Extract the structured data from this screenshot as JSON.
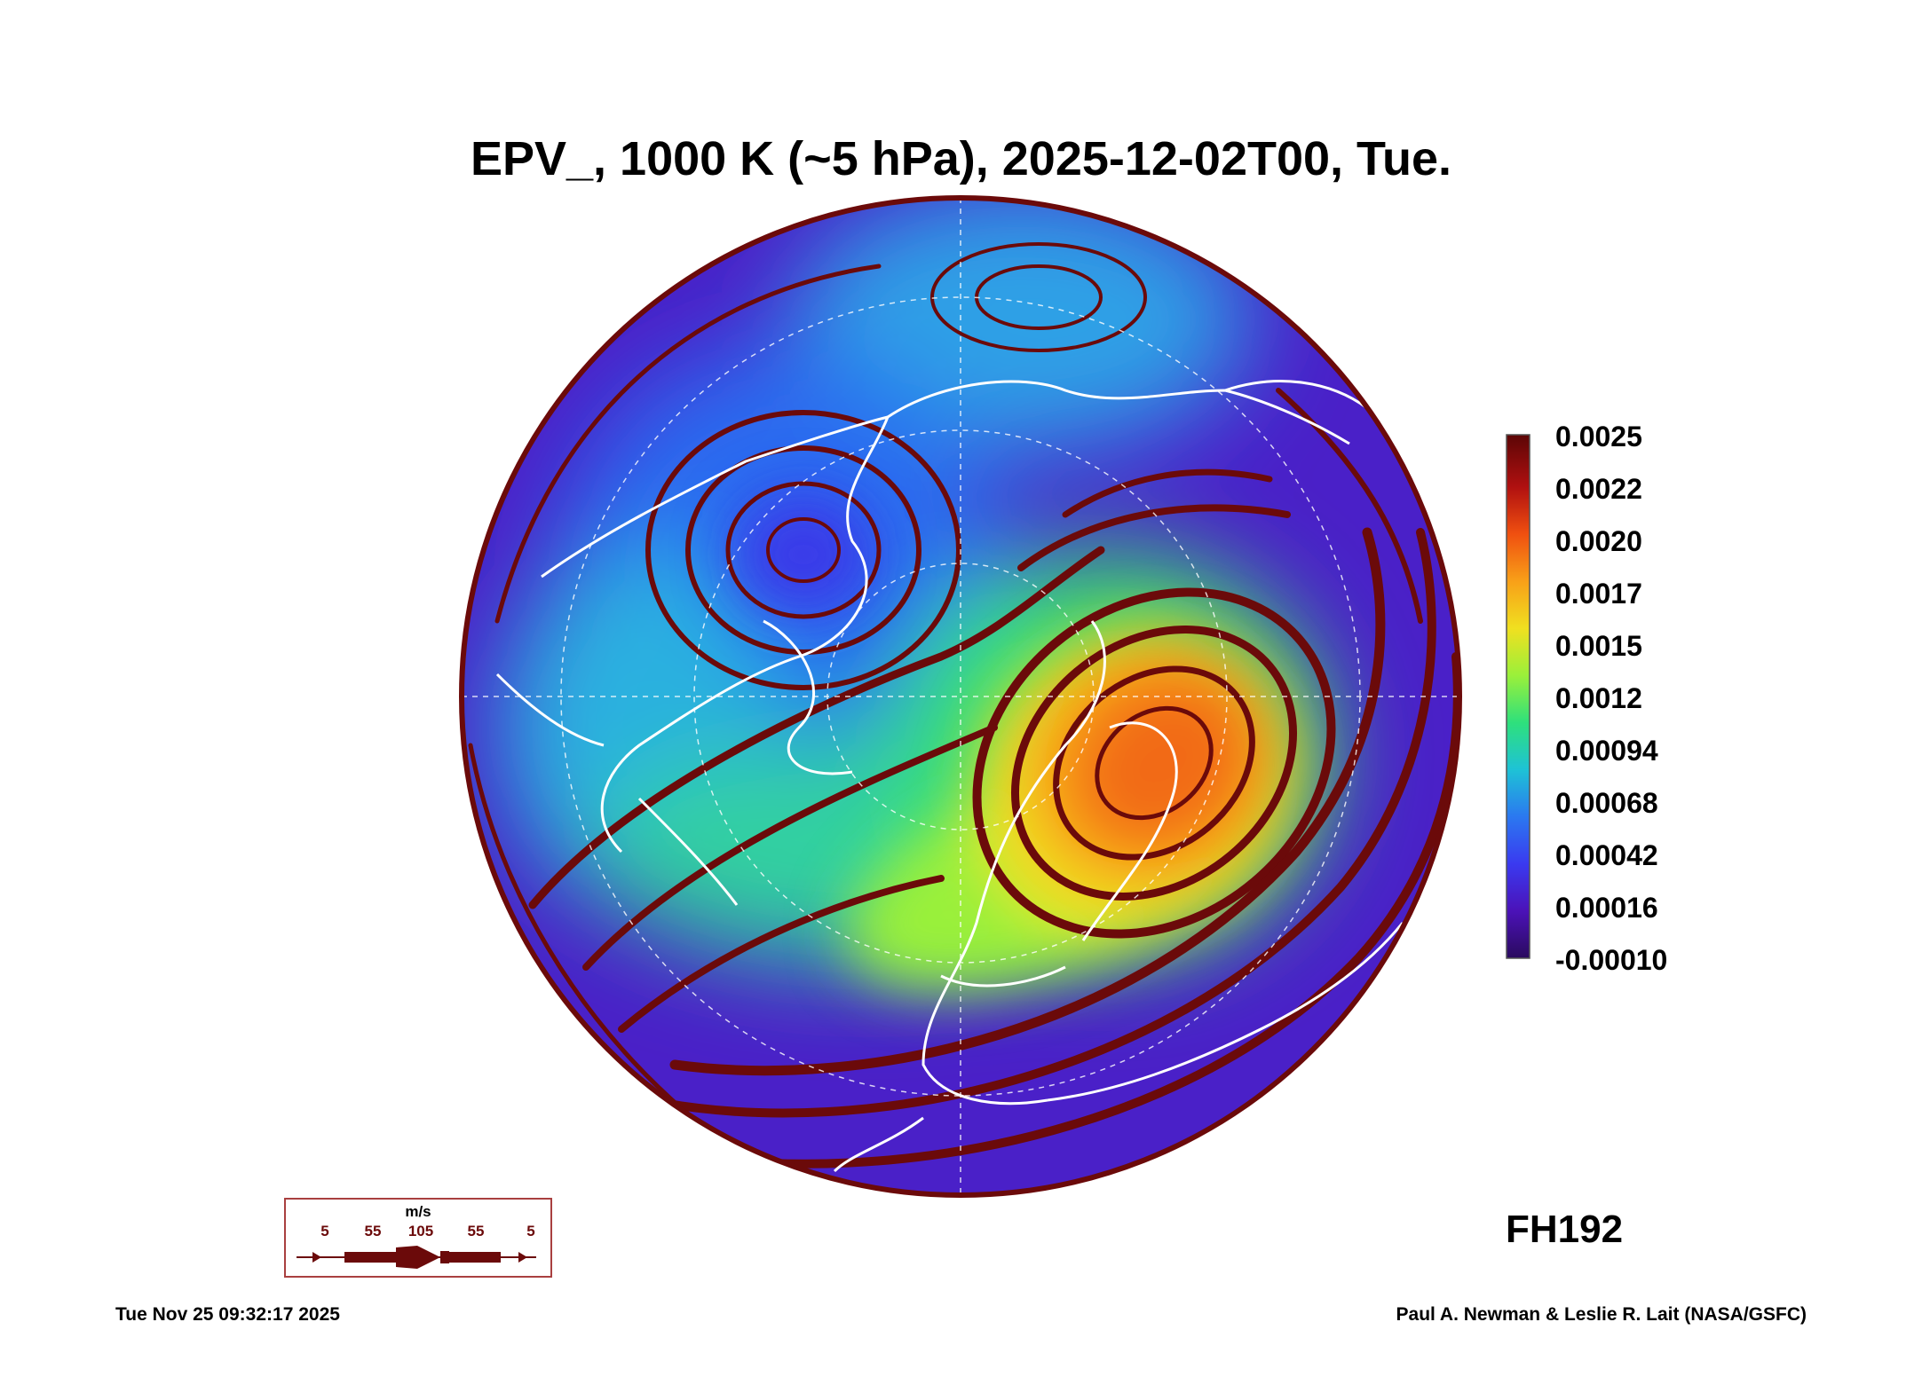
{
  "title": "EPV_, 1000 K (~5 hPa), 2025-12-02T00, Tue.",
  "colorbar": {
    "labels": [
      "0.0025",
      "0.0022",
      "0.0020",
      "0.0017",
      "0.0015",
      "0.0012",
      "0.00094",
      "0.00068",
      "0.00042",
      "0.00016",
      "-0.00010"
    ],
    "min": -0.0001,
    "max": 0.0025,
    "colors": [
      "#2a0a5e",
      "#4b12b8",
      "#3a3af0",
      "#2b78f0",
      "#1ec2d6",
      "#2ee07c",
      "#9af03a",
      "#f0e020",
      "#f8a018",
      "#f05010",
      "#b01010",
      "#5c0606"
    ]
  },
  "forecast_hour": "FH192",
  "wind_legend": {
    "unit": "m/s",
    "speeds": [
      "5",
      "55",
      "105",
      "55",
      "5"
    ]
  },
  "footer": {
    "timestamp": "Tue Nov 25 09:32:17 2025",
    "credit": "Paul A. Newman & Leslie R. Lait (NASA/GSFC)"
  },
  "style": {
    "streamline_color": "#6b0a0a",
    "coast_color": "#ffffff",
    "grid_color": "#ffffff"
  }
}
